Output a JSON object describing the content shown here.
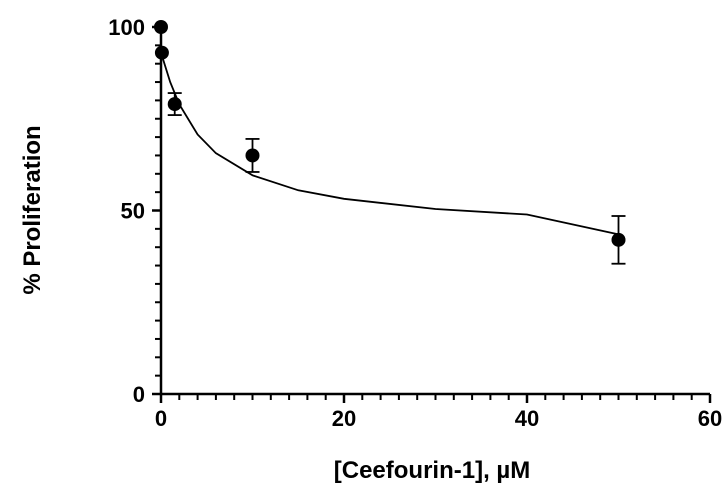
{
  "chart_data": {
    "type": "scatter",
    "title": "",
    "xlabel": "[Ceefourin-1], µM",
    "ylabel": "% Proliferation",
    "xlim": [
      0,
      60
    ],
    "ylim": [
      0,
      100
    ],
    "x_ticks": [
      0,
      20,
      40,
      60
    ],
    "y_ticks": [
      0,
      50,
      100
    ],
    "grid": false,
    "legend": "none",
    "series": [
      {
        "points": [
          {
            "x": 0,
            "y": 100,
            "err": 0
          },
          {
            "x": 0.1,
            "y": 93,
            "err": 0
          },
          {
            "x": 1.5,
            "y": 79,
            "err": 3
          },
          {
            "x": 10,
            "y": 65,
            "err": 4.5
          },
          {
            "x": 50,
            "y": 42,
            "err": 6.5
          }
        ],
        "fit": {
          "kind": "inhibition curve",
          "x": [
            0,
            1,
            2,
            4,
            6,
            10,
            15,
            20,
            30,
            40,
            50
          ],
          "y": [
            93.0,
            85.0,
            78.9,
            70.7,
            65.6,
            59.6,
            55.5,
            53.2,
            50.4,
            48.9,
            43.5
          ]
        }
      }
    ]
  }
}
